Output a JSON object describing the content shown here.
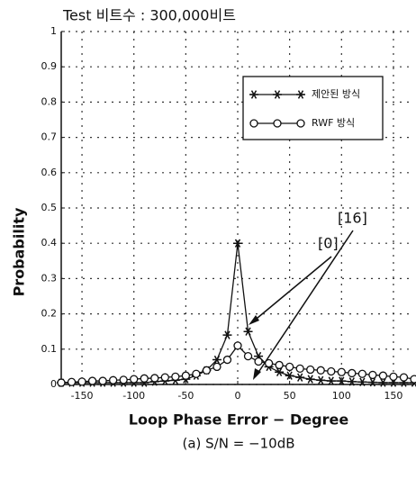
{
  "chart_data": {
    "type": "line",
    "title": "Test 비트수 : 300,000비트",
    "x_label": "Loop Phase Error − Degree",
    "y_label": "Probability",
    "caption": "(a) S/N = −10dB",
    "x": [
      -170,
      -160,
      -150,
      -140,
      -130,
      -120,
      -110,
      -100,
      -90,
      -80,
      -70,
      -60,
      -50,
      -40,
      -30,
      -20,
      -10,
      0,
      10,
      20,
      30,
      40,
      50,
      60,
      70,
      80,
      90,
      100,
      110,
      120,
      130,
      140,
      150,
      160,
      170
    ],
    "series": [
      {
        "name": "제안된 방식",
        "color": "#111111",
        "marker": "star",
        "values": [
          0.005,
          0.005,
          0.005,
          0.005,
          0.005,
          0.005,
          0.005,
          0.005,
          0.005,
          0.008,
          0.01,
          0.012,
          0.015,
          0.025,
          0.04,
          0.07,
          0.14,
          0.4,
          0.15,
          0.08,
          0.05,
          0.035,
          0.025,
          0.02,
          0.015,
          0.012,
          0.01,
          0.01,
          0.008,
          0.007,
          0.006,
          0.005,
          0.005,
          0.005,
          0.005
        ]
      },
      {
        "name": "RWF 방식",
        "color": "#111111",
        "marker": "circle",
        "values": [
          0.005,
          0.007,
          0.008,
          0.01,
          0.01,
          0.012,
          0.013,
          0.015,
          0.017,
          0.018,
          0.02,
          0.022,
          0.025,
          0.03,
          0.04,
          0.05,
          0.07,
          0.11,
          0.08,
          0.065,
          0.06,
          0.055,
          0.05,
          0.045,
          0.042,
          0.04,
          0.037,
          0.035,
          0.032,
          0.03,
          0.027,
          0.025,
          0.022,
          0.02,
          0.015
        ]
      }
    ],
    "annotations": [
      "[0]",
      "[16]"
    ],
    "xlim": [
      -170,
      170
    ],
    "ylim": [
      0,
      1
    ],
    "xticks": [
      -150,
      -100,
      -50,
      0,
      50,
      100,
      150
    ],
    "yticks": [
      0,
      0.1,
      0.2,
      0.3,
      0.4,
      0.5,
      0.6,
      0.7,
      0.8,
      0.9,
      1
    ],
    "grid": true,
    "legend": "upper right"
  }
}
